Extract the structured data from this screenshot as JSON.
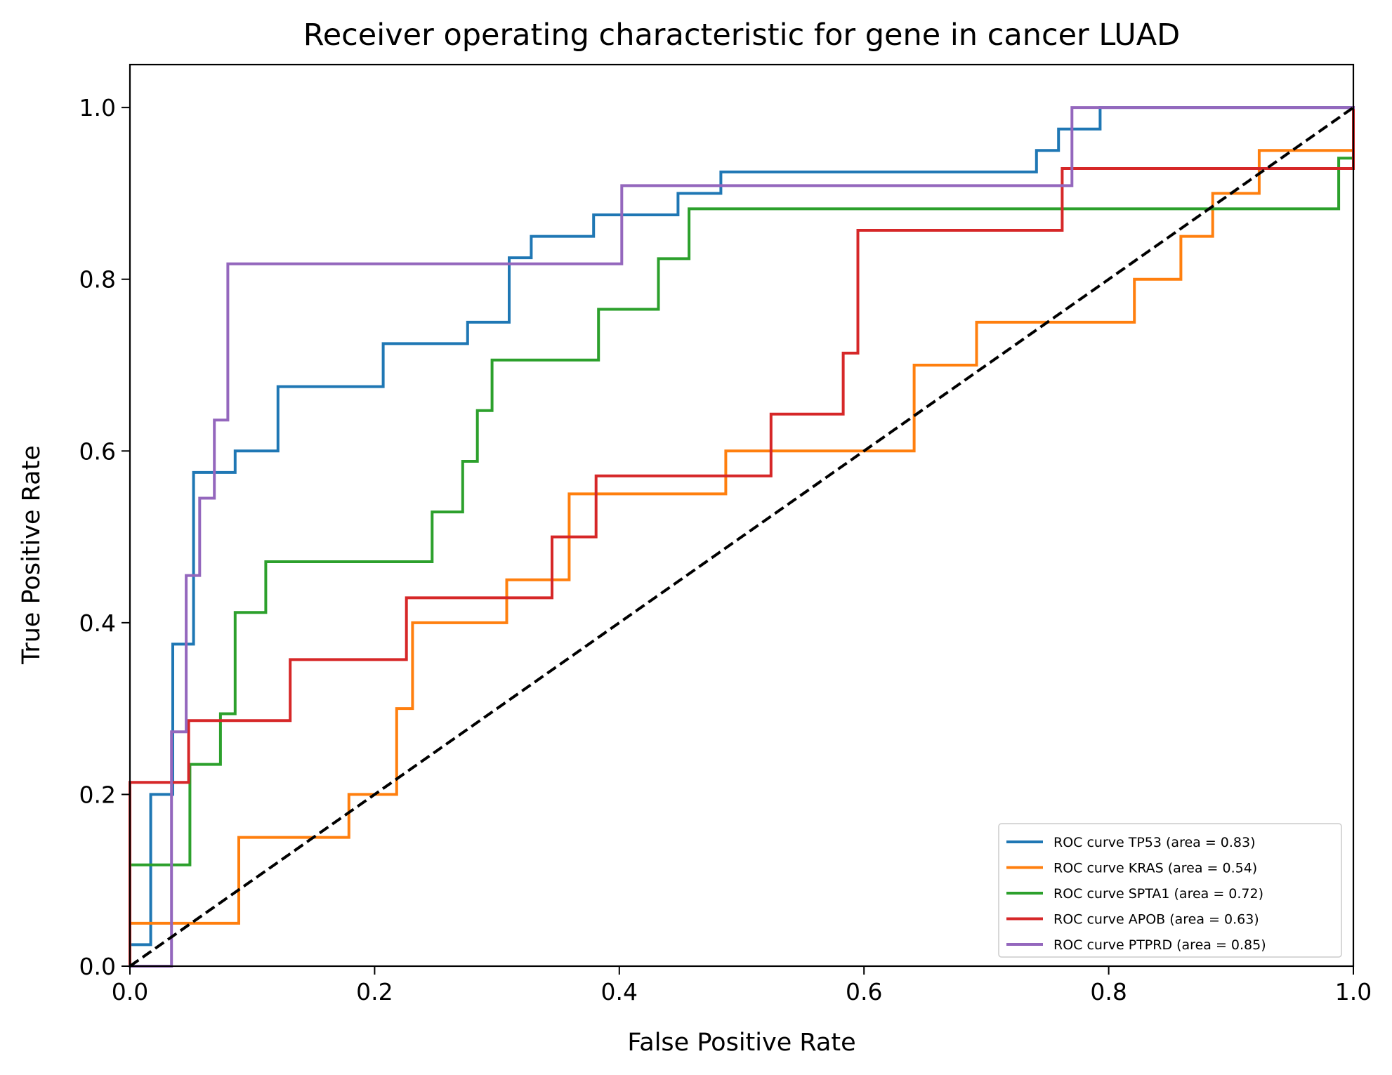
{
  "chart_data": {
    "type": "line",
    "title": "Receiver operating characteristic for gene in cancer LUAD",
    "xlabel": "False Positive Rate",
    "ylabel": "True Positive Rate",
    "xlim": [
      0.0,
      1.0
    ],
    "ylim": [
      0.0,
      1.05
    ],
    "xticks": [
      "0.0",
      "0.2",
      "0.4",
      "0.6",
      "0.8",
      "1.0"
    ],
    "yticks": [
      "0.0",
      "0.2",
      "0.4",
      "0.6",
      "0.8",
      "1.0"
    ],
    "grid": false,
    "legend_position": "lower-right",
    "reference_line": {
      "x": [
        0,
        1
      ],
      "y": [
        0,
        1
      ],
      "color": "#000000",
      "style": "dashed"
    },
    "series": [
      {
        "name": "ROC curve TP53 (area = 0.83)",
        "color": "#1f77b4",
        "x": [
          0,
          0,
          0.017,
          0.017,
          0.035,
          0.035,
          0.052,
          0.052,
          0.086,
          0.086,
          0.121,
          0.121,
          0.207,
          0.207,
          0.276,
          0.276,
          0.31,
          0.31,
          0.328,
          0.328,
          0.379,
          0.379,
          0.448,
          0.448,
          0.483,
          0.483,
          0.741,
          0.741,
          0.759,
          0.759,
          0.793,
          0.793,
          1.0
        ],
        "y": [
          0,
          0.025,
          0.025,
          0.2,
          0.2,
          0.375,
          0.375,
          0.575,
          0.575,
          0.6,
          0.6,
          0.675,
          0.675,
          0.725,
          0.725,
          0.75,
          0.75,
          0.825,
          0.825,
          0.85,
          0.85,
          0.875,
          0.875,
          0.9,
          0.9,
          0.925,
          0.925,
          0.95,
          0.95,
          0.975,
          0.975,
          1.0,
          1.0
        ]
      },
      {
        "name": "ROC curve KRAS (area = 0.54)",
        "color": "#ff7f0e",
        "x": [
          0,
          0,
          0.089,
          0.089,
          0.179,
          0.179,
          0.218,
          0.218,
          0.231,
          0.231,
          0.308,
          0.308,
          0.359,
          0.359,
          0.487,
          0.487,
          0.641,
          0.641,
          0.692,
          0.692,
          0.821,
          0.821,
          0.859,
          0.859,
          0.885,
          0.885,
          0.923,
          0.923,
          1.0,
          1.0
        ],
        "y": [
          0,
          0.05,
          0.05,
          0.15,
          0.15,
          0.2,
          0.2,
          0.3,
          0.3,
          0.4,
          0.4,
          0.45,
          0.45,
          0.55,
          0.55,
          0.6,
          0.6,
          0.7,
          0.7,
          0.75,
          0.75,
          0.8,
          0.8,
          0.85,
          0.85,
          0.9,
          0.9,
          0.95,
          0.95,
          1.0
        ]
      },
      {
        "name": "ROC curve SPTA1 (area = 0.72)",
        "color": "#2ca02c",
        "x": [
          0,
          0,
          0.049,
          0.049,
          0.074,
          0.074,
          0.086,
          0.086,
          0.111,
          0.111,
          0.247,
          0.247,
          0.272,
          0.272,
          0.284,
          0.284,
          0.296,
          0.296,
          0.383,
          0.383,
          0.432,
          0.432,
          0.457,
          0.457,
          0.988,
          0.988,
          1.0,
          1.0
        ],
        "y": [
          0,
          0.118,
          0.118,
          0.235,
          0.235,
          0.294,
          0.294,
          0.412,
          0.412,
          0.471,
          0.471,
          0.529,
          0.529,
          0.588,
          0.588,
          0.647,
          0.647,
          0.706,
          0.706,
          0.765,
          0.765,
          0.824,
          0.824,
          0.882,
          0.882,
          0.941,
          0.941,
          1.0
        ]
      },
      {
        "name": "ROC curve APOB (area = 0.63)",
        "color": "#d62728",
        "x": [
          0,
          0,
          0.048,
          0.048,
          0.131,
          0.131,
          0.226,
          0.226,
          0.345,
          0.345,
          0.381,
          0.381,
          0.524,
          0.524,
          0.583,
          0.583,
          0.595,
          0.595,
          0.762,
          0.762,
          1.0,
          1.0
        ],
        "y": [
          0,
          0.214,
          0.214,
          0.286,
          0.286,
          0.357,
          0.357,
          0.429,
          0.429,
          0.5,
          0.5,
          0.571,
          0.571,
          0.643,
          0.643,
          0.714,
          0.714,
          0.857,
          0.857,
          0.929,
          0.929,
          1.0
        ]
      },
      {
        "name": "ROC curve PTPRD (area = 0.85)",
        "color": "#9467bd",
        "x": [
          0,
          0.034,
          0.034,
          0.046,
          0.046,
          0.057,
          0.057,
          0.069,
          0.069,
          0.08,
          0.08,
          0.402,
          0.402,
          0.77,
          0.77,
          1.0
        ],
        "y": [
          0,
          0,
          0.273,
          0.273,
          0.455,
          0.455,
          0.545,
          0.545,
          0.636,
          0.636,
          0.818,
          0.818,
          0.909,
          0.909,
          1.0,
          1.0
        ]
      }
    ]
  }
}
